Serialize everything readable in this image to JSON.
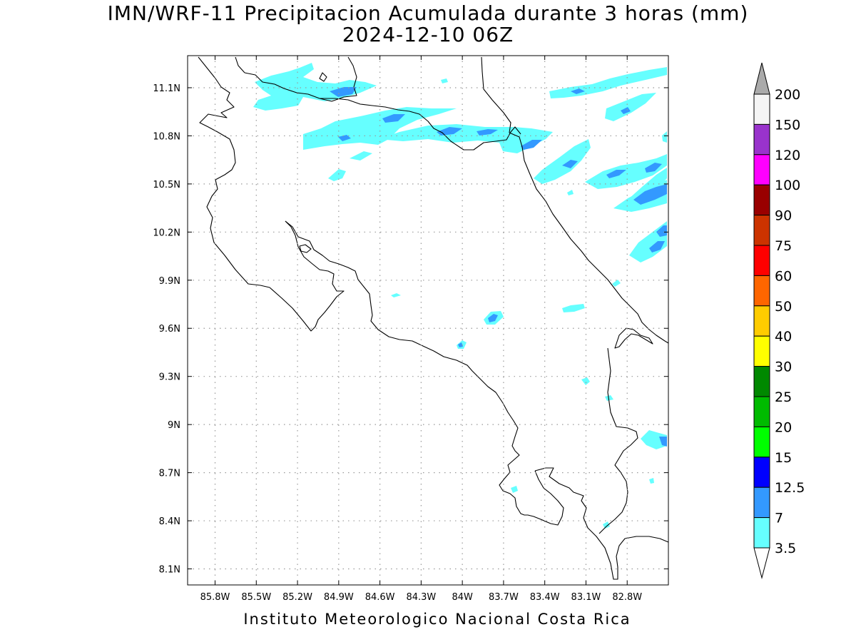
{
  "title": {
    "line1": "IMN/WRF-11 Precipitacion Acumulada durante 3 horas (mm)",
    "line2": "2024-12-10 06Z"
  },
  "footer": "Instituto Meteorologico Nacional Costa Rica",
  "map": {
    "lon_range": [
      -86.0,
      -82.5
    ],
    "lat_range": [
      8.0,
      11.3
    ],
    "x_ticks": [
      "85.8W",
      "85.5W",
      "85.2W",
      "84.9W",
      "84.6W",
      "84.3W",
      "84W",
      "83.7W",
      "83.4W",
      "83.1W",
      "82.8W"
    ],
    "y_ticks": [
      "11.1N",
      "10.8N",
      "10.5N",
      "10.2N",
      "9.9N",
      "9.6N",
      "9.3N",
      "9N",
      "8.7N",
      "8.4N",
      "8.1N"
    ],
    "grid": "dotted"
  },
  "colorbar": {
    "labels": [
      "200",
      "150",
      "120",
      "100",
      "90",
      "75",
      "60",
      "50",
      "40",
      "30",
      "25",
      "20",
      "15",
      "12.5",
      "7",
      "3.5"
    ],
    "colors": [
      "#f5f5f5",
      "#9933cc",
      "#ff00ff",
      "#990000",
      "#cc3300",
      "#ff0000",
      "#ff6600",
      "#ffcc00",
      "#ffff00",
      "#008800",
      "#00bb00",
      "#00ff00",
      "#0000ff",
      "#3399ff",
      "#66ffff"
    ],
    "top_arrow_color": "#aaaaaa",
    "bottom_arrow_color": "#ffffff"
  },
  "palette": {
    "light_rain": "#66ffff",
    "moderate_rain": "#3399ff",
    "heavy_rain": "#3366dd"
  }
}
